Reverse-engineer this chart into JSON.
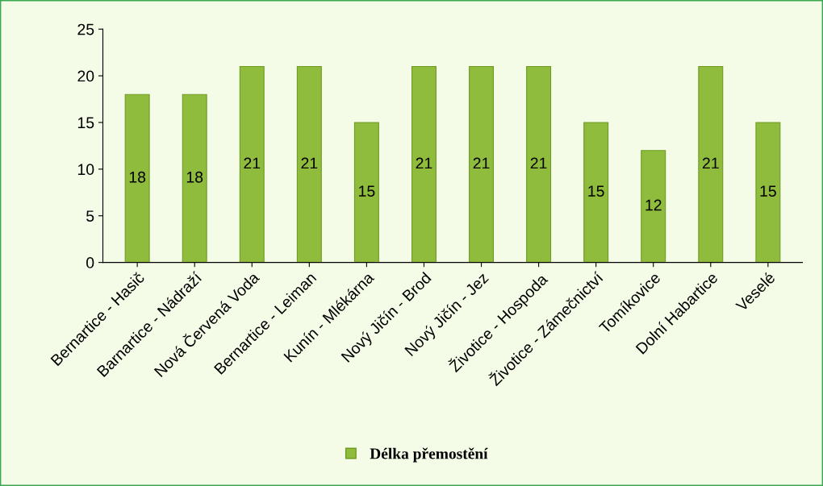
{
  "chart_data": {
    "type": "bar",
    "categories": [
      "Bernartice - Hasič",
      "Barnartice - Nádraží",
      "Nová Červená Voda",
      "Bernartice - Leiman",
      "Kunín - Mlékárna",
      "Nový Jičín - Brod",
      "Nový Jičín - Jez",
      "Životice - Hospoda",
      "Životice - Zámečnictví",
      "Tomíkovice",
      "Dolní Habartice",
      "Veselé"
    ],
    "series": [
      {
        "name": "Délka přemostění",
        "color": "#8fbc3c",
        "values": [
          18,
          18,
          21,
          21,
          15,
          21,
          21,
          21,
          15,
          12,
          21,
          15
        ]
      }
    ],
    "ylim": [
      0,
      25
    ],
    "yticks": [
      0,
      5,
      10,
      15,
      20,
      25
    ],
    "data_labels": true,
    "grid": false,
    "legend": "bottom"
  }
}
